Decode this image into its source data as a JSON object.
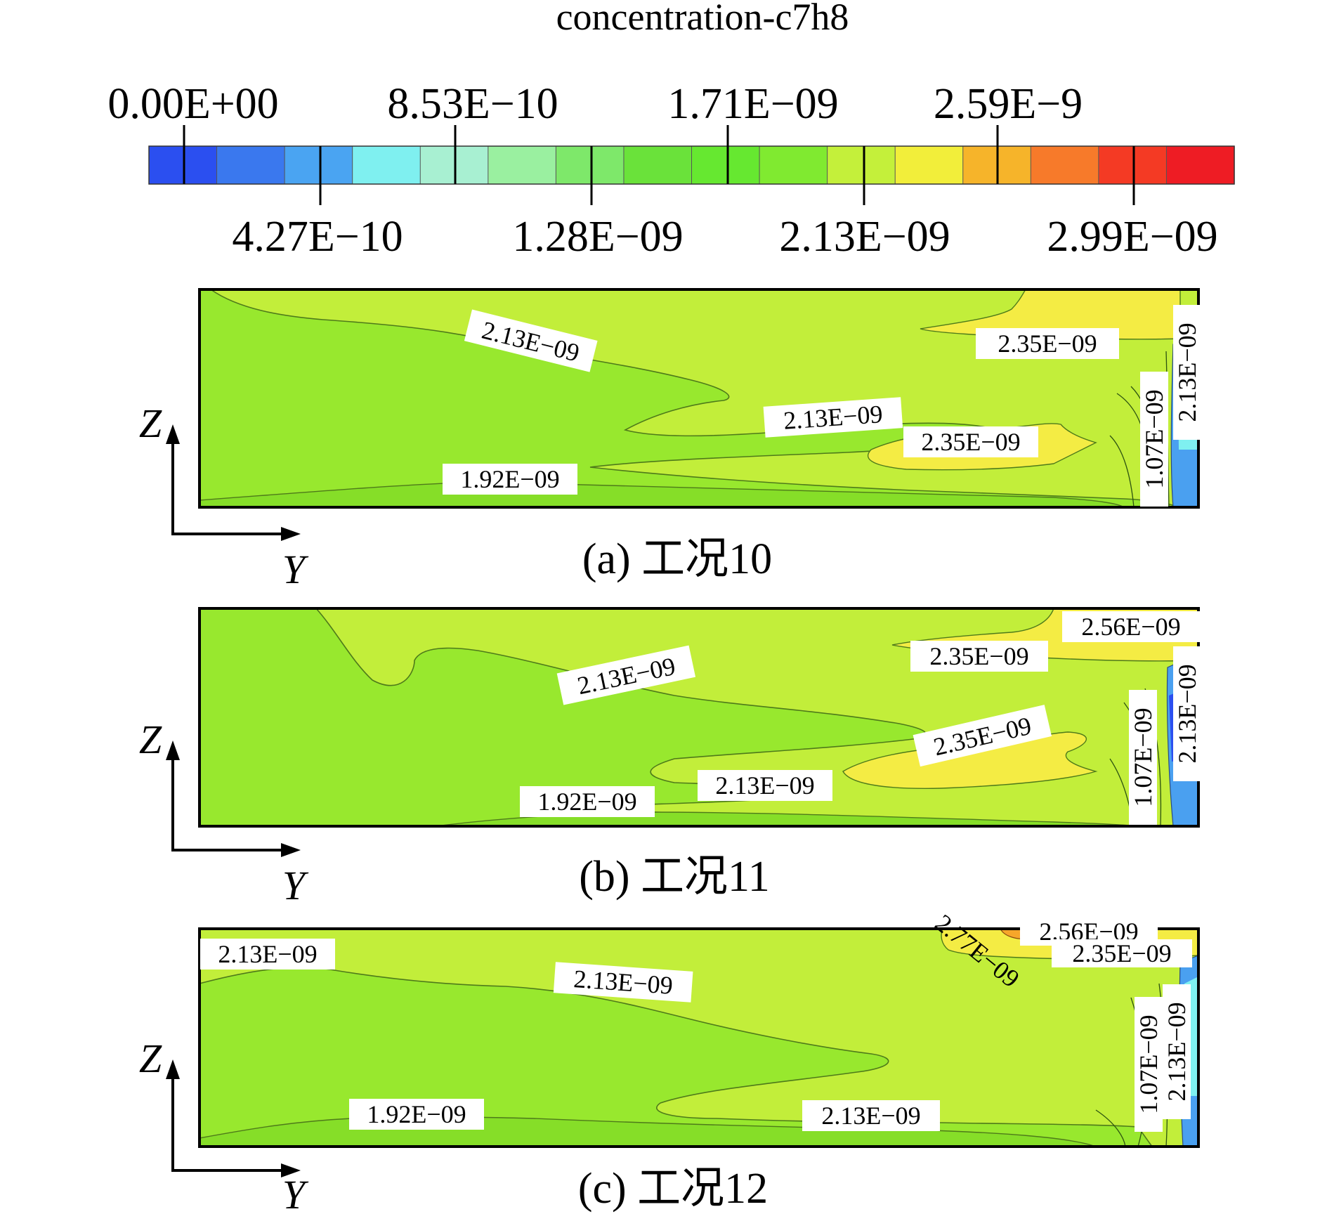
{
  "title": "concentration-c7h8",
  "colorbar": {
    "colors": [
      "#2b4ff0",
      "#3a78ee",
      "#4aa4f2",
      "#7ff0f0",
      "#a8f0d2",
      "#9af0a0",
      "#7ee86a",
      "#6ae23a",
      "#66e830",
      "#80ea30",
      "#c4f03a",
      "#f2ee3a",
      "#f6b42a",
      "#f77a2a",
      "#f43a24",
      "#ee1c24"
    ],
    "top_labels": [
      "0.00E+00",
      "8.53E−10",
      "1.71E−09",
      "2.59E−9"
    ],
    "bottom_labels": [
      "4.27E−10",
      "1.28E−09",
      "2.13E−09",
      "2.99E−09"
    ]
  },
  "axes": {
    "z": "Z",
    "y": "Y"
  },
  "panels": [
    {
      "caption": "(a) 工况10",
      "labels": [
        "2.13E−09",
        "2.35E−09",
        "2.13E−09",
        "2.35E−09",
        "1.92E−09",
        "1.07E−09",
        "2.13E−09"
      ]
    },
    {
      "caption": "(b) 工况11",
      "labels": [
        "2.56E−09",
        "2.35E−09",
        "2.13E−09",
        "2.35E−09",
        "2.13E−09",
        "1.92E−09",
        "1.07E−09",
        "2.13E−09"
      ]
    },
    {
      "caption": "(c) 工况12",
      "labels": [
        "2.77E−09",
        "2.56E−09",
        "2.35E−09",
        "2.13E−09",
        "2.13E−09",
        "1.92E−09",
        "2.13E−09",
        "1.07E−09",
        "2.13E−09"
      ]
    }
  ],
  "field_colors": {
    "mid": "#c2ee3a",
    "low": "#98e82e",
    "high": "#f4ec44",
    "warm": "#f6a62a",
    "cool": "#4aa0f0"
  }
}
